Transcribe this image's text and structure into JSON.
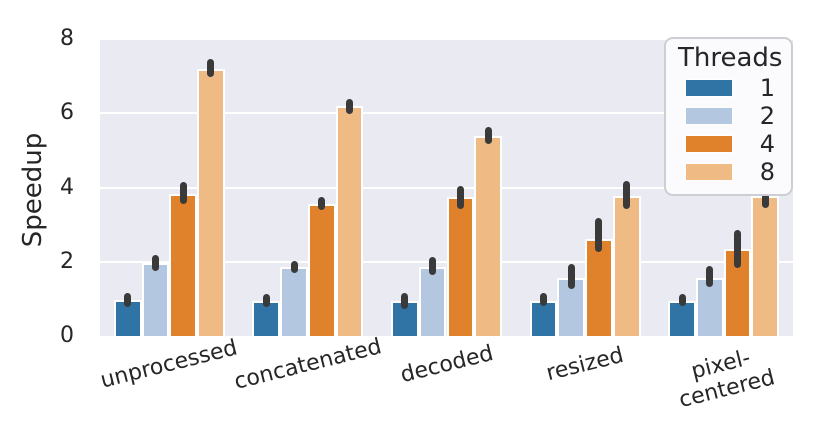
{
  "chart_data": {
    "type": "bar",
    "title": "",
    "xlabel": "",
    "ylabel": "Speedup",
    "ylim": [
      0,
      8
    ],
    "yticks": [
      0,
      2,
      4,
      6,
      8
    ],
    "grid": true,
    "categories": [
      "unprocessed",
      "concatenated",
      "decoded",
      "resized",
      "pixel-\ncentered"
    ],
    "series": [
      {
        "name": "1",
        "color": "#2f74a4",
        "values": [
          0.96,
          0.95,
          0.95,
          0.93,
          0.93
        ],
        "errors": [
          [
            0.87,
            1.08
          ],
          [
            0.87,
            1.04
          ],
          [
            0.81,
            1.08
          ],
          [
            0.88,
            1.07
          ],
          [
            0.89,
            1.05
          ]
        ]
      },
      {
        "name": "2",
        "color": "#b3c8e0",
        "values": [
          1.97,
          1.85,
          1.87,
          1.55,
          1.57
        ],
        "errors": [
          [
            1.83,
            2.11
          ],
          [
            1.79,
            1.95
          ],
          [
            1.72,
            2.06
          ],
          [
            1.36,
            1.86
          ],
          [
            1.39,
            1.81
          ]
        ]
      },
      {
        "name": "4",
        "color": "#e0812c",
        "values": [
          3.83,
          3.56,
          3.75,
          2.62,
          2.35
        ],
        "errors": [
          [
            3.63,
            4.06
          ],
          [
            3.47,
            3.66
          ],
          [
            3.49,
            3.95
          ],
          [
            2.34,
            3.09
          ],
          [
            1.91,
            2.78
          ]
        ]
      },
      {
        "name": "8",
        "color": "#efba84",
        "values": [
          7.2,
          6.2,
          5.39,
          3.78,
          3.78
        ],
        "errors": [
          [
            7.06,
            7.39
          ],
          [
            6.06,
            6.31
          ],
          [
            5.24,
            5.56
          ],
          [
            3.49,
            4.09
          ],
          [
            3.54,
            3.97
          ]
        ]
      }
    ],
    "legend": {
      "title": "Threads",
      "position": "upper right"
    },
    "colors": {
      "plot_background": "#eaeaf2",
      "grid": "#ffffff",
      "error_bar": "#3a3a3a",
      "text": "#262626",
      "legend_background": "#fbfbfd"
    }
  }
}
